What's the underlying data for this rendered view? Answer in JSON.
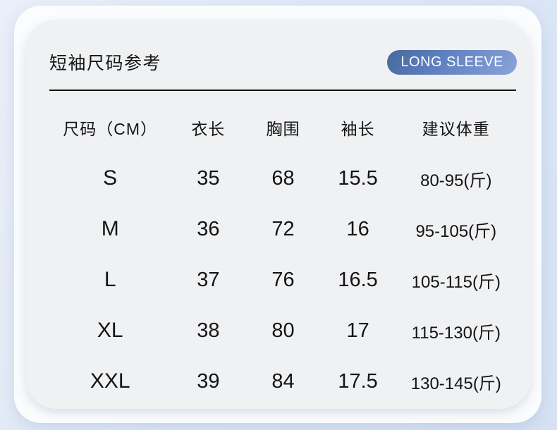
{
  "page": {
    "title": "短袖尺码参考",
    "badge_label": "LONG SLEEVE"
  },
  "colors": {
    "background_blue": "#dfe8f6",
    "card_outer": "#fbfcfe",
    "card_inner": "#f0f1f3",
    "badge_gradient_start": "#46699c",
    "badge_gradient_end": "#8aa4d8",
    "badge_text": "#ffffff",
    "text": "#141414",
    "divider": "#121212"
  },
  "chart_data": {
    "type": "table",
    "title": "短袖尺码参考",
    "badge": "LONG SLEEVE",
    "columns": [
      "尺码（CM）",
      "衣长",
      "胸围",
      "袖长",
      "建议体重"
    ],
    "rows": [
      [
        "S",
        "35",
        "68",
        "15.5",
        "80-95(斤)"
      ],
      [
        "M",
        "36",
        "72",
        "16",
        "95-105(斤)"
      ],
      [
        "L",
        "37",
        "76",
        "16.5",
        "105-115(斤)"
      ],
      [
        "XL",
        "38",
        "80",
        "17",
        "115-130(斤)"
      ],
      [
        "XXL",
        "39",
        "84",
        "17.5",
        "130-145(斤)"
      ]
    ]
  }
}
